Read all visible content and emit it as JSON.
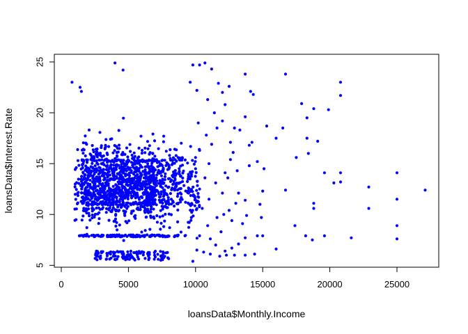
{
  "chart_data": {
    "type": "scatter",
    "title": "",
    "xlabel": "loansData$Monthly.Income",
    "ylabel": "loansData$Interest.Rate",
    "xlim": [
      0,
      27500
    ],
    "ylim": [
      5.3,
      25.0
    ],
    "x_ticks": [
      0,
      5000,
      10000,
      15000,
      20000,
      25000
    ],
    "y_ticks": [
      5,
      10,
      15,
      20,
      25
    ],
    "grid": false,
    "point_color": "#0000ff",
    "plot_box_color": "#000000",
    "sparse_points": [
      [
        800,
        23.0
      ],
      [
        1400,
        22.5
      ],
      [
        1500,
        22.1
      ],
      [
        4000,
        24.9
      ],
      [
        4600,
        24.2
      ],
      [
        9800,
        24.7
      ],
      [
        10300,
        24.7
      ],
      [
        10700,
        24.9
      ],
      [
        11200,
        24.3
      ],
      [
        13700,
        23.8
      ],
      [
        16700,
        23.8
      ],
      [
        20800,
        23.0
      ],
      [
        20800,
        21.7
      ],
      [
        14100,
        22.1
      ],
      [
        14300,
        21.8
      ],
      [
        12500,
        22.6
      ],
      [
        12000,
        22.0
      ],
      [
        9600,
        23.0
      ],
      [
        18800,
        20.4
      ],
      [
        19900,
        20.3
      ],
      [
        17900,
        20.9
      ],
      [
        15300,
        18.7
      ],
      [
        16500,
        18.5
      ],
      [
        18300,
        19.5
      ],
      [
        18300,
        17.5
      ],
      [
        19100,
        17.2
      ],
      [
        13700,
        19.6
      ],
      [
        12000,
        19.2
      ],
      [
        12900,
        18.5
      ],
      [
        13300,
        18.3
      ],
      [
        16000,
        17.5
      ],
      [
        14000,
        16.8
      ],
      [
        14200,
        17.1
      ],
      [
        17500,
        15.6
      ],
      [
        18400,
        16.0
      ],
      [
        14600,
        15.2
      ],
      [
        14000,
        14.8
      ],
      [
        15100,
        14.5
      ],
      [
        20300,
        13.1
      ],
      [
        20800,
        13.2
      ],
      [
        20800,
        14.1
      ],
      [
        19600,
        14.1
      ],
      [
        22900,
        12.7
      ],
      [
        25000,
        14.1
      ],
      [
        27100,
        12.4
      ],
      [
        16700,
        12.4
      ],
      [
        15000,
        12.3
      ],
      [
        13200,
        12.1
      ],
      [
        13700,
        11.4
      ],
      [
        14800,
        11.0
      ],
      [
        18800,
        11.1
      ],
      [
        18800,
        10.6
      ],
      [
        22900,
        10.6
      ],
      [
        25000,
        11.5
      ],
      [
        12500,
        10.4
      ],
      [
        13800,
        9.9
      ],
      [
        14900,
        9.7
      ],
      [
        13500,
        9.1
      ],
      [
        17400,
        8.9
      ],
      [
        25000,
        8.9
      ],
      [
        14600,
        7.9
      ],
      [
        15000,
        7.9
      ],
      [
        18200,
        7.9
      ],
      [
        19600,
        7.9
      ],
      [
        18700,
        7.5
      ],
      [
        21600,
        7.7
      ],
      [
        25000,
        7.6
      ],
      [
        13700,
        7.7
      ],
      [
        16000,
        6.6
      ],
      [
        14400,
        6.1
      ],
      [
        13700,
        6.0
      ],
      [
        12900,
        6.0
      ],
      [
        12300,
        6.0
      ],
      [
        11800,
        5.9
      ],
      [
        11100,
        6.1
      ],
      [
        10600,
        6.3
      ],
      [
        9800,
        5.4
      ],
      [
        10100,
        6.5
      ],
      [
        11500,
        7.0
      ],
      [
        12700,
        6.7
      ],
      [
        10300,
        7.9
      ],
      [
        11100,
        7.6
      ],
      [
        10900,
        8.9
      ],
      [
        11600,
        9.7
      ],
      [
        10500,
        10.6
      ],
      [
        11000,
        11.5
      ],
      [
        12000,
        12.1
      ],
      [
        10300,
        12.5
      ],
      [
        11500,
        13.1
      ],
      [
        10700,
        13.6
      ],
      [
        12200,
        14.1
      ],
      [
        10000,
        14.5
      ],
      [
        11000,
        15.0
      ],
      [
        12600,
        15.4
      ],
      [
        10300,
        16.3
      ],
      [
        11200,
        16.9
      ],
      [
        12600,
        17.1
      ],
      [
        10800,
        17.8
      ],
      [
        11600,
        18.5
      ],
      [
        10200,
        19.0
      ],
      [
        11400,
        20.0
      ],
      [
        12200,
        20.8
      ],
      [
        10900,
        21.3
      ],
      [
        10100,
        22.2
      ],
      [
        11700,
        22.9
      ],
      [
        12800,
        16.1
      ],
      [
        12400,
        13.6
      ],
      [
        13100,
        14.3
      ],
      [
        12100,
        10.0
      ],
      [
        13000,
        11.1
      ],
      [
        12700,
        9.4
      ],
      [
        11900,
        8.3
      ],
      [
        13200,
        7.1
      ],
      [
        12200,
        6.4
      ]
    ],
    "dense_region_note": "main cluster concentrated between monthly income ~1000 and ~10000, interest rate ~5.4 to ~25"
  }
}
